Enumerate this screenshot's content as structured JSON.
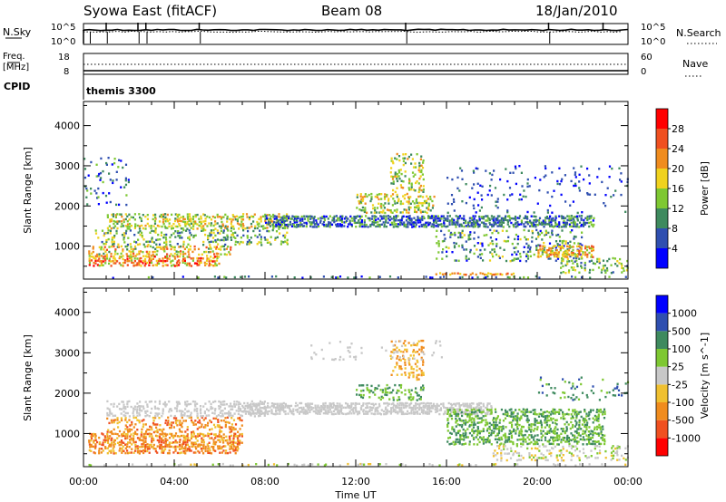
{
  "header": {
    "station": "Syowa East (fitACF)",
    "beam": "Beam 08",
    "date": "18/Jan/2010"
  },
  "noise_panel": {
    "left_label": "N.Sky",
    "right_label": "N.Search",
    "left_top_tick": "10^5",
    "left_bottom_tick": "10^0",
    "right_top_tick": "10^5",
    "right_bottom_tick": "10^0"
  },
  "freq_panel": {
    "left_label_line1": "Freq.",
    "left_label_line2": "[MHz]",
    "right_label": "Nave",
    "left_top_tick": "18",
    "left_bottom_tick": "8",
    "right_top_tick": "60",
    "right_bottom_tick": "0",
    "cpid_label": "CPID",
    "cpid_value": "themis 3300"
  },
  "time_axis": {
    "label": "Time UT",
    "ticks": [
      "00:00",
      "04:00",
      "08:00",
      "12:00",
      "16:00",
      "20:00",
      "00:00"
    ]
  },
  "chart_data": [
    {
      "type": "heatmap",
      "name": "power",
      "ylabel": "Slant Range [km]",
      "xlabel": "Time UT",
      "xlim": [
        0,
        24
      ],
      "ylim": [
        180,
        4600
      ],
      "yticks": [
        1000,
        2000,
        3000,
        4000
      ],
      "colorbar": {
        "label": "Power [dB]",
        "ticks": [
          "4",
          "8",
          "12",
          "16",
          "20",
          "24",
          "28"
        ],
        "tick_values": [
          4,
          8,
          12,
          16,
          20,
          24,
          28
        ],
        "range": [
          0,
          32
        ],
        "colors": [
          "#0000ff",
          "#2f4fb0",
          "#3e8a5e",
          "#7ec832",
          "#f0d21e",
          "#f08c1e",
          "#f05020",
          "#ff0000"
        ]
      },
      "bands": [
        {
          "t0": 0.0,
          "t1": 24.0,
          "r0": 180,
          "r1": 260,
          "density": 0.22,
          "cmin": 0,
          "cmax": 3
        },
        {
          "t0": 0.2,
          "t1": 6.0,
          "r0": 480,
          "r1": 760,
          "density": 0.62,
          "cmin": 3,
          "cmax": 7
        },
        {
          "t0": 0.2,
          "t1": 6.5,
          "r0": 760,
          "r1": 1000,
          "density": 0.5,
          "cmin": 2,
          "cmax": 6
        },
        {
          "t0": 0.5,
          "t1": 9.0,
          "r0": 1000,
          "r1": 1400,
          "density": 0.3,
          "cmin": 1,
          "cmax": 4
        },
        {
          "t0": 1.0,
          "t1": 9.0,
          "r0": 1400,
          "r1": 1800,
          "density": 0.5,
          "cmin": 2,
          "cmax": 5
        },
        {
          "t0": 8.0,
          "t1": 22.5,
          "r0": 1450,
          "r1": 1750,
          "density": 0.7,
          "cmin": 0,
          "cmax": 3
        },
        {
          "t0": 12.0,
          "t1": 15.5,
          "r0": 1800,
          "r1": 2300,
          "density": 0.4,
          "cmin": 2,
          "cmax": 5
        },
        {
          "t0": 13.5,
          "t1": 15.0,
          "r0": 2300,
          "r1": 3300,
          "density": 0.3,
          "cmin": 2,
          "cmax": 5
        },
        {
          "t0": 15.5,
          "t1": 22.0,
          "r0": 600,
          "r1": 1400,
          "density": 0.22,
          "cmin": 0,
          "cmax": 4
        },
        {
          "t0": 15.5,
          "t1": 19.0,
          "r0": 260,
          "r1": 340,
          "density": 0.8,
          "cmin": 4,
          "cmax": 6
        },
        {
          "t0": 20.0,
          "t1": 22.5,
          "r0": 700,
          "r1": 1000,
          "density": 0.55,
          "cmin": 3,
          "cmax": 6
        },
        {
          "t0": 21.0,
          "t1": 24.0,
          "r0": 300,
          "r1": 700,
          "density": 0.3,
          "cmin": 1,
          "cmax": 4
        },
        {
          "t0": 0.0,
          "t1": 2.0,
          "r0": 2000,
          "r1": 3200,
          "density": 0.12,
          "cmin": 0,
          "cmax": 3
        },
        {
          "t0": 16.0,
          "t1": 24.0,
          "r0": 1800,
          "r1": 3000,
          "density": 0.08,
          "cmin": 0,
          "cmax": 2
        }
      ]
    },
    {
      "type": "heatmap",
      "name": "velocity",
      "ylabel": "Slant Range [km]",
      "xlabel": "Time UT",
      "xlim": [
        0,
        24
      ],
      "ylim": [
        180,
        4600
      ],
      "yticks": [
        1000,
        2000,
        3000,
        4000
      ],
      "colorbar": {
        "label": "Velocity [m s^-1]",
        "ticks": [
          "1000",
          "500",
          "100",
          "25",
          "-25",
          "-100",
          "-500",
          "-1000"
        ],
        "colors": [
          "#ff0000",
          "#f05020",
          "#f08c1e",
          "#f0c030",
          "#c8c8c8",
          "#7ec832",
          "#3e8a5e",
          "#2f4fb0",
          "#0000ff"
        ]
      },
      "bands": [
        {
          "t0": 0.0,
          "t1": 24.0,
          "r0": 180,
          "r1": 260,
          "density": 0.18,
          "cmin": 3,
          "cmax": 5
        },
        {
          "t0": 0.2,
          "t1": 7.0,
          "r0": 480,
          "r1": 1000,
          "density": 0.6,
          "cmin": 1,
          "cmax": 3
        },
        {
          "t0": 1.0,
          "t1": 7.0,
          "r0": 1000,
          "r1": 1400,
          "density": 0.35,
          "cmin": 1,
          "cmax": 3
        },
        {
          "t0": 1.0,
          "t1": 8.0,
          "r0": 1400,
          "r1": 1800,
          "density": 0.45,
          "cmin": 4,
          "cmax": 4
        },
        {
          "t0": 7.0,
          "t1": 18.0,
          "r0": 1450,
          "r1": 1750,
          "density": 0.7,
          "cmin": 4,
          "cmax": 4
        },
        {
          "t0": 12.0,
          "t1": 15.0,
          "r0": 1800,
          "r1": 2200,
          "density": 0.4,
          "cmin": 5,
          "cmax": 6
        },
        {
          "t0": 13.5,
          "t1": 15.0,
          "r0": 2300,
          "r1": 3300,
          "density": 0.3,
          "cmin": 2,
          "cmax": 3
        },
        {
          "t0": 16.0,
          "t1": 23.0,
          "r0": 700,
          "r1": 1600,
          "density": 0.45,
          "cmin": 5,
          "cmax": 6
        },
        {
          "t0": 18.0,
          "t1": 24.0,
          "r0": 300,
          "r1": 700,
          "density": 0.3,
          "cmin": 3,
          "cmax": 5
        },
        {
          "t0": 20.0,
          "t1": 24.0,
          "r0": 1800,
          "r1": 2400,
          "density": 0.12,
          "cmin": 5,
          "cmax": 7
        },
        {
          "t0": 10.0,
          "t1": 16.0,
          "r0": 2800,
          "r1": 3300,
          "density": 0.06,
          "cmin": 4,
          "cmax": 4
        }
      ]
    }
  ],
  "noise_data": {
    "sky_spikes_hours": [
      1.0,
      2.4,
      2.75,
      5.1,
      14.2,
      20.5,
      22.9
    ],
    "search_spikes_hours": [
      0.3,
      1.05,
      2.45,
      2.8,
      5.15,
      14.25,
      20.55
    ]
  }
}
